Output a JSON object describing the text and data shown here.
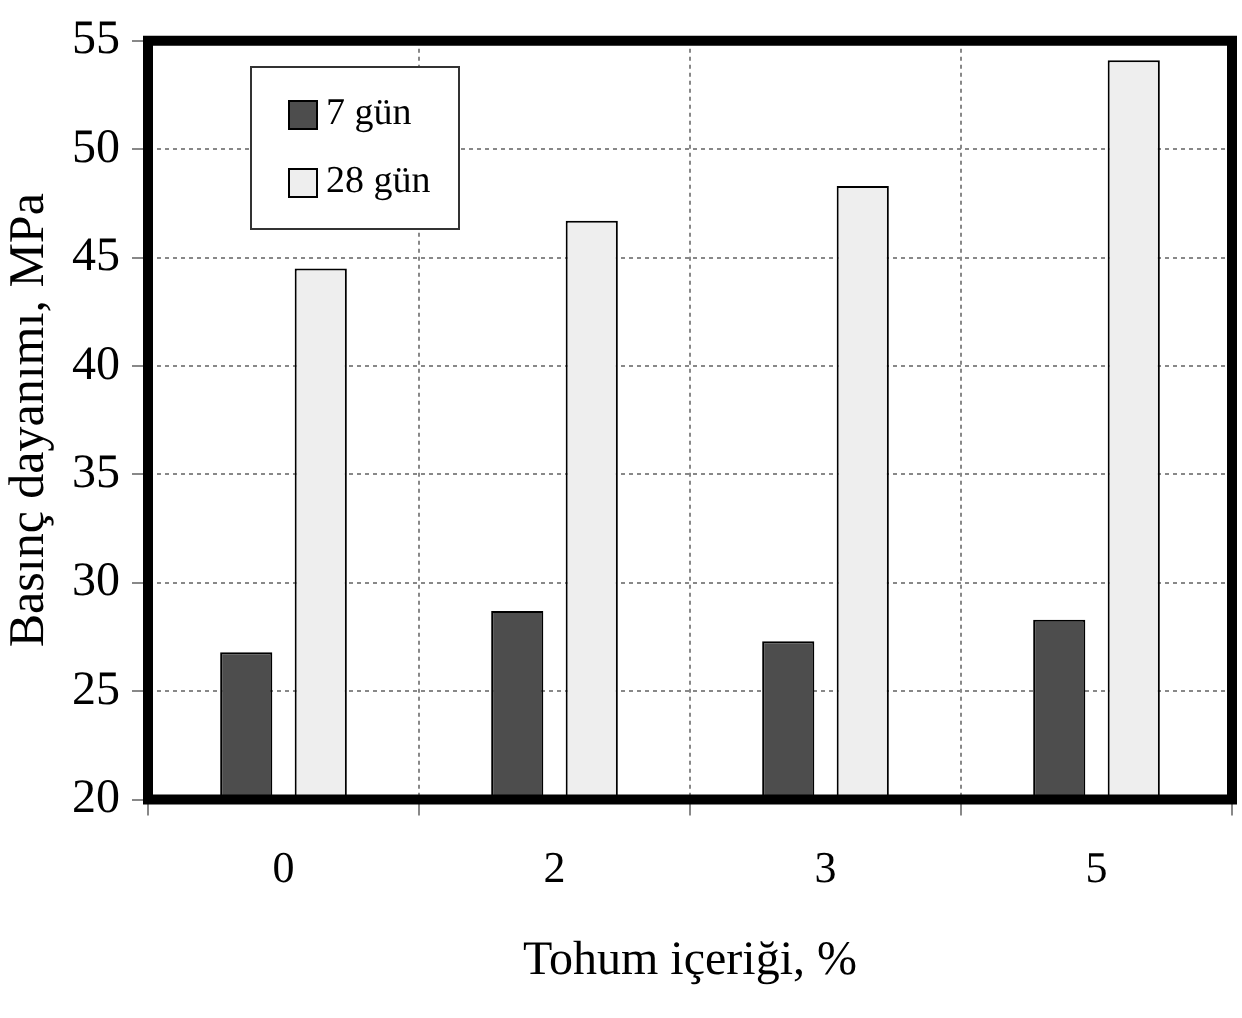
{
  "chart_data": {
    "type": "bar",
    "xlabel": "Tohum içeriği, %",
    "ylabel": "Basınç dayanımı, MPa",
    "categories": [
      "0",
      "2",
      "3",
      "5"
    ],
    "series": [
      {
        "name": "7 gün",
        "color": "#4d4d4d",
        "values": [
          26.8,
          28.7,
          27.3,
          28.3
        ]
      },
      {
        "name": "28 gün",
        "color": "#eeeeee",
        "values": [
          44.5,
          46.7,
          48.3,
          54.1
        ]
      }
    ],
    "ylim": [
      20,
      55
    ],
    "yticks": [
      20,
      25,
      30,
      35,
      40,
      45,
      50,
      55
    ],
    "grid": true,
    "legend": "top left"
  }
}
